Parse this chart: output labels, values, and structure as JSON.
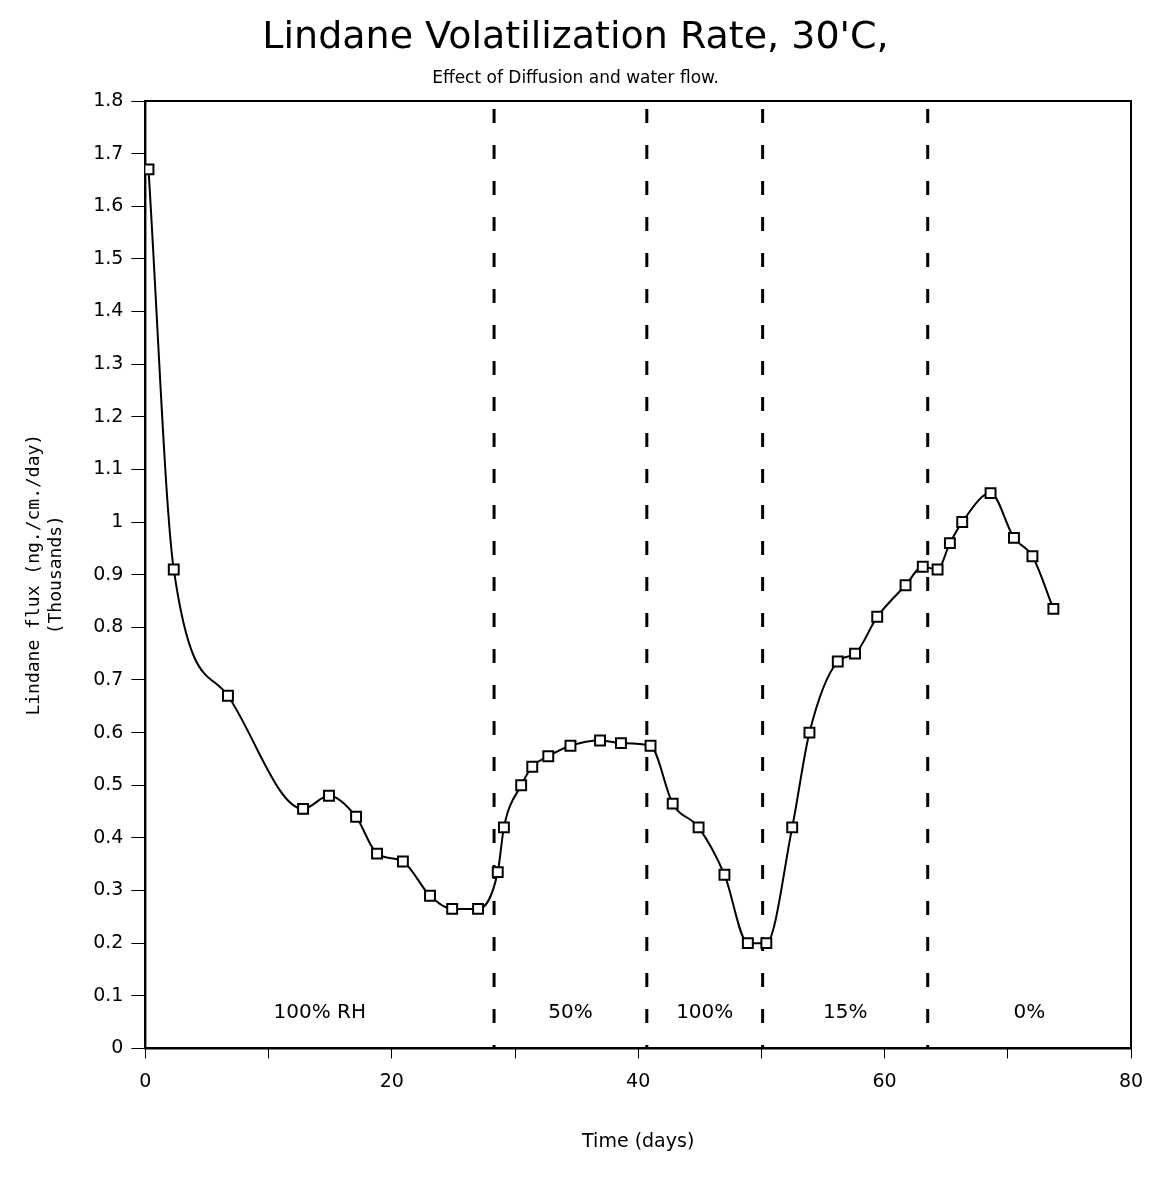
{
  "chart_data": {
    "type": "line",
    "title": "Lindane Volatilization Rate, 30'C,",
    "subtitle": "Effect of Diffusion and water flow.",
    "xlabel": "Time (days)",
    "ylabel": "Lindane flux (ng./cm./day)\n(Thousands)",
    "x": [
      0.25,
      2.3,
      6.7,
      12.8,
      14.9,
      17.1,
      18.8,
      20.9,
      23.1,
      24.9,
      27.0,
      28.6,
      29.1,
      30.5,
      31.4,
      32.7,
      34.5,
      36.9,
      38.6,
      41.0,
      42.8,
      44.9,
      47.0,
      48.9,
      50.4,
      52.5,
      53.9,
      56.2,
      57.6,
      59.4,
      61.7,
      63.1,
      64.3,
      65.3,
      66.3,
      68.6,
      70.5,
      72.0,
      73.7
    ],
    "series": [
      {
        "color": "#000000",
        "values": [
          1.67,
          0.91,
          0.67,
          0.455,
          0.48,
          0.44,
          0.37,
          0.355,
          0.29,
          0.265,
          0.265,
          0.335,
          0.42,
          0.5,
          0.535,
          0.555,
          0.575,
          0.585,
          0.58,
          0.575,
          0.465,
          0.42,
          0.33,
          0.2,
          0.2,
          0.42,
          0.6,
          0.735,
          0.75,
          0.82,
          0.88,
          0.915,
          0.91,
          0.96,
          1.0,
          1.055,
          0.97,
          0.935,
          0.835
        ]
      }
    ],
    "xlim": [
      0,
      80
    ],
    "xticks": [
      0,
      {
        "value": 10,
        "label": null
      },
      20,
      {
        "value": 30,
        "label": null
      },
      40,
      {
        "value": 50,
        "label": null
      },
      60,
      {
        "value": 70,
        "label": null
      },
      80
    ],
    "ylim": [
      0,
      1.8
    ],
    "yticks": [
      0,
      0.1,
      0.2,
      0.3,
      0.4,
      0.5,
      0.6,
      0.7,
      0.8,
      0.9,
      1,
      1.1,
      1.2,
      1.3,
      1.4,
      1.5,
      1.6,
      1.7,
      1.8
    ],
    "ref_lines": [
      {
        "axis": "x",
        "value": 28.3,
        "line_style": "dashed",
        "color": "#000000"
      },
      {
        "axis": "x",
        "value": 40.7,
        "line_style": "dashed",
        "color": "#000000"
      },
      {
        "axis": "x",
        "value": 50.1,
        "line_style": "dashed",
        "color": "#000000"
      },
      {
        "axis": "x",
        "value": 63.5,
        "line_style": "dashed",
        "color": "#000000"
      }
    ],
    "annotations": [
      "100% RH",
      "50%",
      "100%",
      "15%",
      "0%"
    ],
    "grid": false,
    "legend": false,
    "marker": "square",
    "line_style": "solid"
  }
}
